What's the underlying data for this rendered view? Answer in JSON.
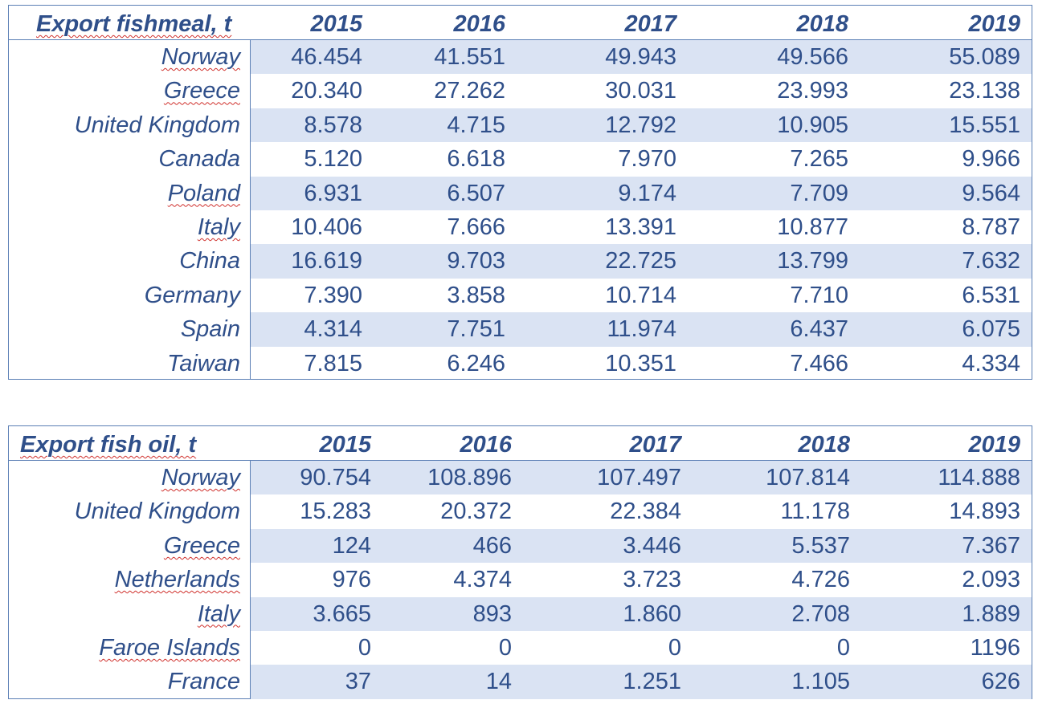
{
  "fishmeal": {
    "title": "Export fishmeal, t",
    "years": [
      "2015",
      "2016",
      "2017",
      "2018",
      "2019"
    ],
    "rows": [
      {
        "country": "Norway",
        "values": [
          "46.454",
          "41.551",
          "49.943",
          "49.566",
          "55.089"
        ]
      },
      {
        "country": "Greece",
        "values": [
          "20.340",
          "27.262",
          "30.031",
          "23.993",
          "23.138"
        ]
      },
      {
        "country": "United Kingdom",
        "values": [
          "8.578",
          "4.715",
          "12.792",
          "10.905",
          "15.551"
        ]
      },
      {
        "country": "Canada",
        "values": [
          "5.120",
          "6.618",
          "7.970",
          "7.265",
          "9.966"
        ]
      },
      {
        "country": "Poland",
        "values": [
          "6.931",
          "6.507",
          "9.174",
          "7.709",
          "9.564"
        ]
      },
      {
        "country": "Italy",
        "values": [
          "10.406",
          "7.666",
          "13.391",
          "10.877",
          "8.787"
        ]
      },
      {
        "country": "China",
        "values": [
          "16.619",
          "9.703",
          "22.725",
          "13.799",
          "7.632"
        ]
      },
      {
        "country": "Germany",
        "values": [
          "7.390",
          "3.858",
          "10.714",
          "7.710",
          "6.531"
        ]
      },
      {
        "country": "Spain",
        "values": [
          "4.314",
          "7.751",
          "11.974",
          "6.437",
          "6.075"
        ]
      },
      {
        "country": "Taiwan",
        "values": [
          "7.815",
          "6.246",
          "10.351",
          "7.466",
          "4.334"
        ]
      }
    ]
  },
  "fishoil": {
    "title": "Export fish oil, t",
    "years": [
      "2015",
      "2016",
      "2017",
      "2018",
      "2019"
    ],
    "rows": [
      {
        "country": "Norway",
        "values": [
          "90.754",
          "108.896",
          "107.497",
          "107.814",
          "114.888"
        ]
      },
      {
        "country": "United Kingdom",
        "values": [
          "15.283",
          "20.372",
          "22.384",
          "11.178",
          "14.893"
        ]
      },
      {
        "country": "Greece",
        "values": [
          "124",
          "466",
          "3.446",
          "5.537",
          "7.367"
        ]
      },
      {
        "country": "Netherlands",
        "values": [
          "976",
          "4.374",
          "3.723",
          "4.726",
          "2.093"
        ]
      },
      {
        "country": "Italy",
        "values": [
          "3.665",
          "893",
          "1.860",
          "2.708",
          "1.889"
        ]
      },
      {
        "country": "Faroe Islands",
        "values": [
          "0",
          "0",
          "0",
          "0",
          "1196"
        ]
      },
      {
        "country": "France",
        "values": [
          "37",
          "14",
          "1.251",
          "1.105",
          "626"
        ]
      }
    ]
  }
}
